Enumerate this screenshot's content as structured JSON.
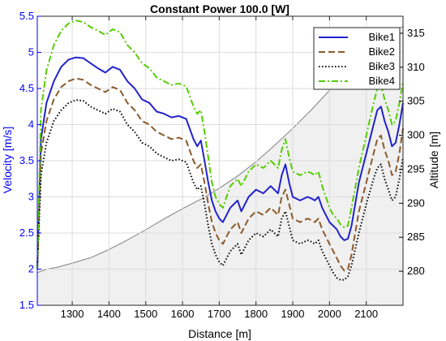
{
  "chart_data": {
    "type": "line",
    "title": "Constant Power 100.0 [W]",
    "xlabel": "Distance [m]",
    "ylabel_left": "Velocity [m/s]",
    "ylabel_right": "Altitude [m]",
    "xlim": [
      1205,
      2200
    ],
    "ylim_left": [
      1.5,
      5.5
    ],
    "ylim_right": [
      275,
      317.5
    ],
    "xticks": [
      1300,
      1400,
      1500,
      1600,
      1700,
      1800,
      1900,
      2000,
      2100
    ],
    "yticks_left": [
      1.5,
      2,
      2.5,
      3,
      3.5,
      4,
      4.5,
      5,
      5.5
    ],
    "yticks_right": [
      280,
      285,
      290,
      295,
      300,
      305,
      310,
      315
    ],
    "grid": true,
    "legend_position": "top-right",
    "colors": {
      "left_axis": "#0000ff",
      "right_axis": "#000000",
      "altitude_fill": "#f0f0f0",
      "altitude_line": "#7f7f7f"
    },
    "altitude": {
      "x": [
        1205,
        1230,
        1260,
        1300,
        1350,
        1400,
        1450,
        1500,
        1550,
        1600,
        1650,
        1700,
        1750,
        1800,
        1850,
        1900,
        1950,
        2000,
        2050,
        2100,
        2150,
        2200
      ],
      "y": [
        279.8,
        280.3,
        280.6,
        281.2,
        282.0,
        283.2,
        284.6,
        286.1,
        287.7,
        289.2,
        290.6,
        292.2,
        294.0,
        296.1,
        298.5,
        301.0,
        303.7,
        306.6,
        309.6,
        312.4,
        314.6,
        316.0
      ]
    },
    "series": [
      {
        "name": "Bike1",
        "color": "#2222cc",
        "dash": "solid",
        "x": [
          1205,
          1215,
          1230,
          1250,
          1270,
          1290,
          1310,
          1330,
          1350,
          1370,
          1390,
          1410,
          1430,
          1450,
          1470,
          1490,
          1510,
          1530,
          1550,
          1570,
          1590,
          1610,
          1630,
          1640,
          1650,
          1660,
          1670,
          1680,
          1690,
          1700,
          1710,
          1720,
          1730,
          1740,
          1750,
          1760,
          1780,
          1800,
          1820,
          1840,
          1860,
          1870,
          1880,
          1890,
          1900,
          1920,
          1940,
          1950,
          1960,
          1970,
          1980,
          1990,
          2000,
          2010,
          2020,
          2030,
          2040,
          2050,
          2060,
          2080,
          2100,
          2120,
          2130,
          2140,
          2150,
          2160,
          2170,
          2180,
          2190,
          2200
        ],
        "y": [
          2.0,
          3.8,
          4.3,
          4.6,
          4.8,
          4.9,
          4.93,
          4.92,
          4.85,
          4.78,
          4.72,
          4.8,
          4.76,
          4.6,
          4.5,
          4.35,
          4.3,
          4.18,
          4.15,
          4.1,
          4.12,
          4.08,
          3.8,
          3.7,
          3.78,
          3.5,
          3.2,
          2.95,
          2.8,
          2.7,
          2.65,
          2.75,
          2.85,
          2.9,
          2.95,
          2.8,
          3.0,
          3.1,
          3.05,
          3.15,
          3.05,
          3.3,
          3.45,
          3.2,
          3.0,
          2.95,
          3.0,
          2.98,
          2.95,
          3.0,
          2.85,
          2.75,
          2.65,
          2.6,
          2.55,
          2.45,
          2.4,
          2.42,
          2.6,
          3.2,
          3.6,
          4.0,
          4.2,
          4.25,
          4.05,
          3.9,
          3.7,
          3.75,
          4.0,
          4.3
        ]
      },
      {
        "name": "Bike2",
        "color": "#8b5a2b",
        "dash": "dashed",
        "x": [
          1205,
          1215,
          1230,
          1250,
          1270,
          1290,
          1310,
          1330,
          1350,
          1370,
          1390,
          1410,
          1430,
          1450,
          1470,
          1490,
          1510,
          1530,
          1550,
          1570,
          1590,
          1610,
          1630,
          1640,
          1650,
          1660,
          1670,
          1680,
          1690,
          1700,
          1710,
          1720,
          1730,
          1740,
          1750,
          1760,
          1780,
          1800,
          1820,
          1840,
          1860,
          1870,
          1880,
          1890,
          1900,
          1920,
          1940,
          1950,
          1960,
          1970,
          1980,
          1990,
          2000,
          2010,
          2020,
          2030,
          2040,
          2050,
          2060,
          2080,
          2100,
          2120,
          2130,
          2140,
          2150,
          2160,
          2170,
          2180,
          2190,
          2200
        ],
        "y": [
          2.0,
          3.6,
          4.05,
          4.35,
          4.52,
          4.6,
          4.64,
          4.62,
          4.55,
          4.5,
          4.45,
          4.52,
          4.48,
          4.3,
          4.2,
          4.05,
          4.0,
          3.9,
          3.85,
          3.8,
          3.82,
          3.78,
          3.5,
          3.4,
          3.45,
          3.2,
          2.9,
          2.65,
          2.5,
          2.4,
          2.35,
          2.45,
          2.55,
          2.6,
          2.65,
          2.5,
          2.7,
          2.8,
          2.75,
          2.85,
          2.75,
          3.0,
          3.1,
          2.9,
          2.7,
          2.65,
          2.7,
          2.68,
          2.65,
          2.7,
          2.55,
          2.45,
          2.35,
          2.25,
          2.15,
          2.05,
          1.98,
          2.0,
          2.2,
          2.8,
          3.2,
          3.6,
          3.8,
          3.85,
          3.65,
          3.5,
          3.3,
          3.35,
          3.6,
          3.95
        ]
      },
      {
        "name": "Bike3",
        "color": "#000000",
        "dash": "dotted",
        "x": [
          1205,
          1215,
          1230,
          1250,
          1270,
          1290,
          1310,
          1330,
          1350,
          1370,
          1390,
          1410,
          1430,
          1450,
          1470,
          1490,
          1510,
          1530,
          1550,
          1570,
          1590,
          1610,
          1630,
          1640,
          1650,
          1660,
          1670,
          1680,
          1690,
          1700,
          1710,
          1720,
          1730,
          1740,
          1750,
          1760,
          1780,
          1800,
          1820,
          1840,
          1860,
          1870,
          1880,
          1890,
          1900,
          1920,
          1940,
          1950,
          1960,
          1970,
          1980,
          1990,
          2000,
          2010,
          2020,
          2030,
          2040,
          2050,
          2060,
          2080,
          2100,
          2120,
          2130,
          2140,
          2150,
          2160,
          2170,
          2180,
          2190,
          2200
        ],
        "y": [
          2.0,
          3.3,
          3.75,
          4.05,
          4.2,
          4.3,
          4.34,
          4.33,
          4.25,
          4.2,
          4.15,
          4.22,
          4.18,
          4.0,
          3.9,
          3.75,
          3.7,
          3.6,
          3.55,
          3.5,
          3.52,
          3.48,
          3.2,
          3.1,
          3.15,
          2.9,
          2.6,
          2.35,
          2.2,
          2.1,
          2.05,
          2.15,
          2.25,
          2.3,
          2.35,
          2.2,
          2.4,
          2.5,
          2.45,
          2.55,
          2.45,
          2.7,
          2.8,
          2.6,
          2.4,
          2.35,
          2.4,
          2.38,
          2.35,
          2.4,
          2.25,
          2.15,
          2.05,
          1.95,
          1.88,
          1.85,
          1.85,
          1.9,
          2.05,
          2.5,
          2.9,
          3.25,
          3.4,
          3.45,
          3.25,
          3.1,
          2.95,
          3.0,
          3.25,
          3.55
        ]
      },
      {
        "name": "Bike4",
        "color": "#55cc00",
        "dash": "dashdot",
        "x": [
          1205,
          1215,
          1230,
          1250,
          1270,
          1290,
          1310,
          1330,
          1350,
          1370,
          1390,
          1410,
          1430,
          1450,
          1470,
          1490,
          1510,
          1530,
          1550,
          1570,
          1590,
          1610,
          1630,
          1640,
          1650,
          1660,
          1670,
          1680,
          1690,
          1700,
          1710,
          1720,
          1730,
          1740,
          1750,
          1760,
          1780,
          1800,
          1820,
          1840,
          1860,
          1870,
          1880,
          1890,
          1900,
          1920,
          1940,
          1950,
          1960,
          1970,
          1980,
          1990,
          2000,
          2010,
          2020,
          2030,
          2040,
          2050,
          2060,
          2080,
          2100,
          2120,
          2130,
          2140,
          2150,
          2160,
          2170,
          2180,
          2190,
          2200
        ],
        "y": [
          2.0,
          4.2,
          4.75,
          5.1,
          5.3,
          5.4,
          5.44,
          5.42,
          5.35,
          5.3,
          5.24,
          5.32,
          5.28,
          5.1,
          5.0,
          4.85,
          4.78,
          4.65,
          4.6,
          4.55,
          4.57,
          4.53,
          4.25,
          4.15,
          4.2,
          3.9,
          3.55,
          3.2,
          3.0,
          2.9,
          2.85,
          3.0,
          3.15,
          3.2,
          3.25,
          3.15,
          3.35,
          3.45,
          3.4,
          3.5,
          3.4,
          3.65,
          3.8,
          3.55,
          3.35,
          3.3,
          3.35,
          3.33,
          3.3,
          3.35,
          3.15,
          3.0,
          2.85,
          2.75,
          2.7,
          2.62,
          2.58,
          2.6,
          2.85,
          3.4,
          3.85,
          4.3,
          4.5,
          4.55,
          4.35,
          4.2,
          4.0,
          4.05,
          4.3,
          4.6
        ]
      }
    ]
  }
}
